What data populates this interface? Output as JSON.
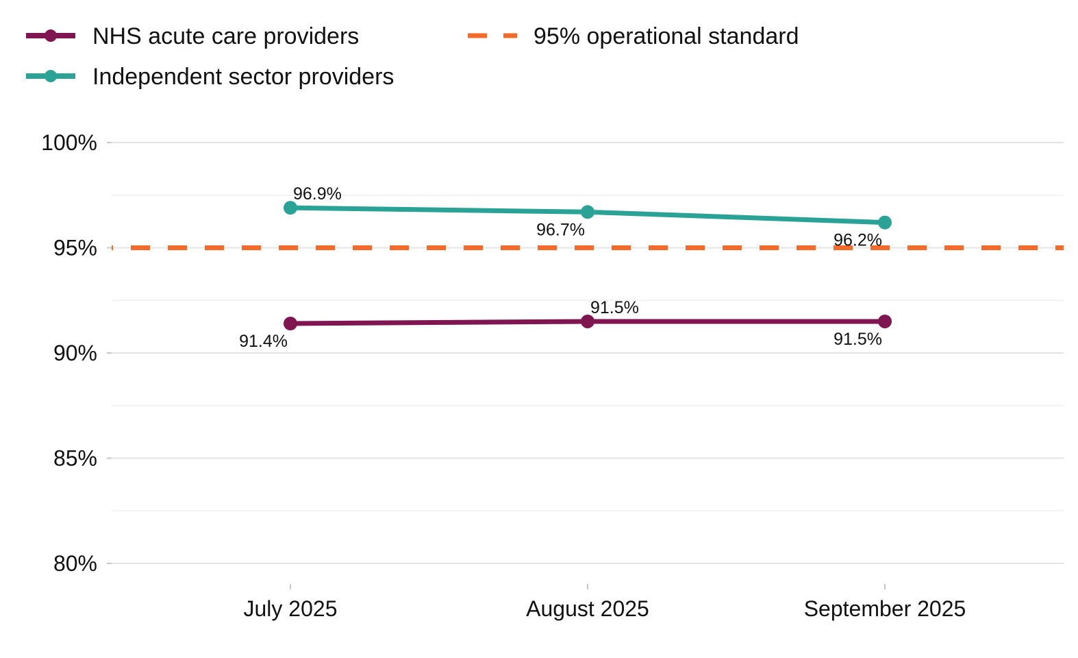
{
  "chart_data": {
    "type": "line",
    "title": "",
    "xlabel": "",
    "ylabel": "",
    "categories": [
      "July 2025",
      "August 2025",
      "September 2025"
    ],
    "ylim": [
      80,
      100
    ],
    "yticks": [
      80,
      85,
      90,
      95,
      100
    ],
    "ytick_labels": [
      "80%",
      "85%",
      "90%",
      "95%",
      "100%"
    ],
    "grid": true,
    "legend_position": "top-left",
    "series": [
      {
        "name": "NHS acute care providers",
        "color": "#7f1651",
        "values": [
          91.4,
          91.5,
          91.5
        ],
        "labels": [
          "91.4%",
          "91.5%",
          "91.5%"
        ],
        "label_positions": [
          "below-left",
          "above-right",
          "below-left"
        ]
      },
      {
        "name": "Independent sector providers",
        "color": "#2aa396",
        "values": [
          96.9,
          96.7,
          96.2
        ],
        "labels": [
          "96.9%",
          "96.7%",
          "96.2%"
        ],
        "label_positions": [
          "above-right",
          "below-left",
          "below-left"
        ]
      }
    ],
    "reference_lines": [
      {
        "name": "95% operational standard",
        "value": 95,
        "color": "#f26b2a",
        "style": "dashed"
      }
    ]
  }
}
